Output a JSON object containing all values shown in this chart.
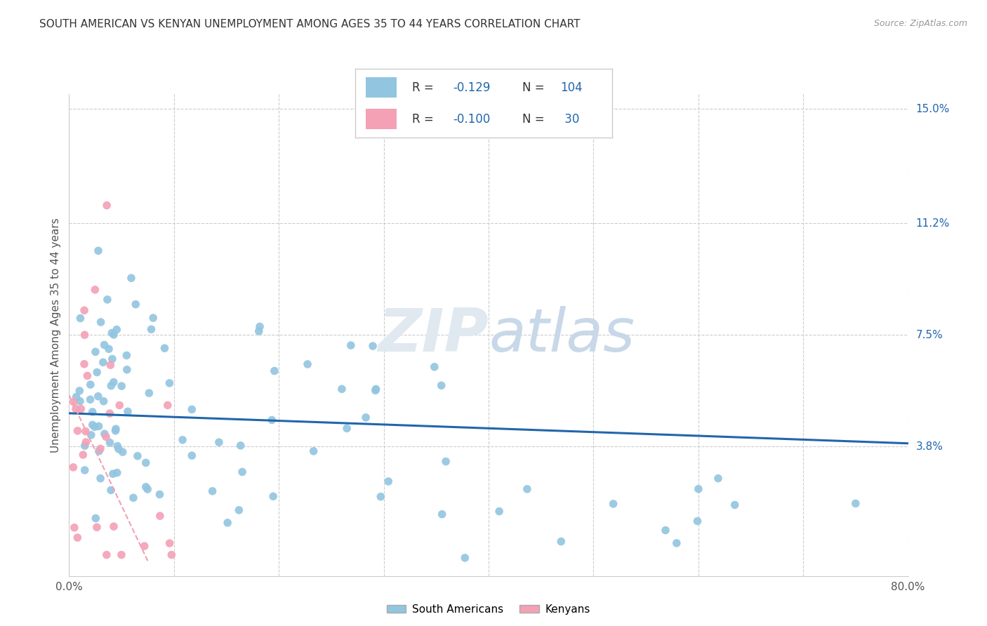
{
  "title": "SOUTH AMERICAN VS KENYAN UNEMPLOYMENT AMONG AGES 35 TO 44 YEARS CORRELATION CHART",
  "source": "Source: ZipAtlas.com",
  "ylabel": "Unemployment Among Ages 35 to 44 years",
  "xlim": [
    0.0,
    0.8
  ],
  "ylim": [
    -0.005,
    0.155
  ],
  "ytick_labels_right": [
    "15.0%",
    "11.2%",
    "7.5%",
    "3.8%"
  ],
  "ytick_values_right": [
    0.15,
    0.112,
    0.075,
    0.038
  ],
  "south_american_R": "-0.129",
  "south_american_N": "104",
  "kenyan_R": "-0.100",
  "kenyan_N": "30",
  "sa_color": "#92C5E0",
  "kenyan_color": "#F4A0B5",
  "sa_line_color": "#2166AC",
  "kenyan_line_color": "#F4A0B5",
  "label_color": "#2166AC",
  "r_text_color": "#2166AC",
  "watermark_color": "#E0E8F0",
  "background_color": "#FFFFFF",
  "grid_color": "#CCCCCC",
  "title_color": "#333333",
  "axis_color": "#666666",
  "sa_trend_start_y": 0.049,
  "sa_trend_end_y": 0.039,
  "k_trend_start_y": 0.055,
  "k_trend_end_x": 0.075
}
